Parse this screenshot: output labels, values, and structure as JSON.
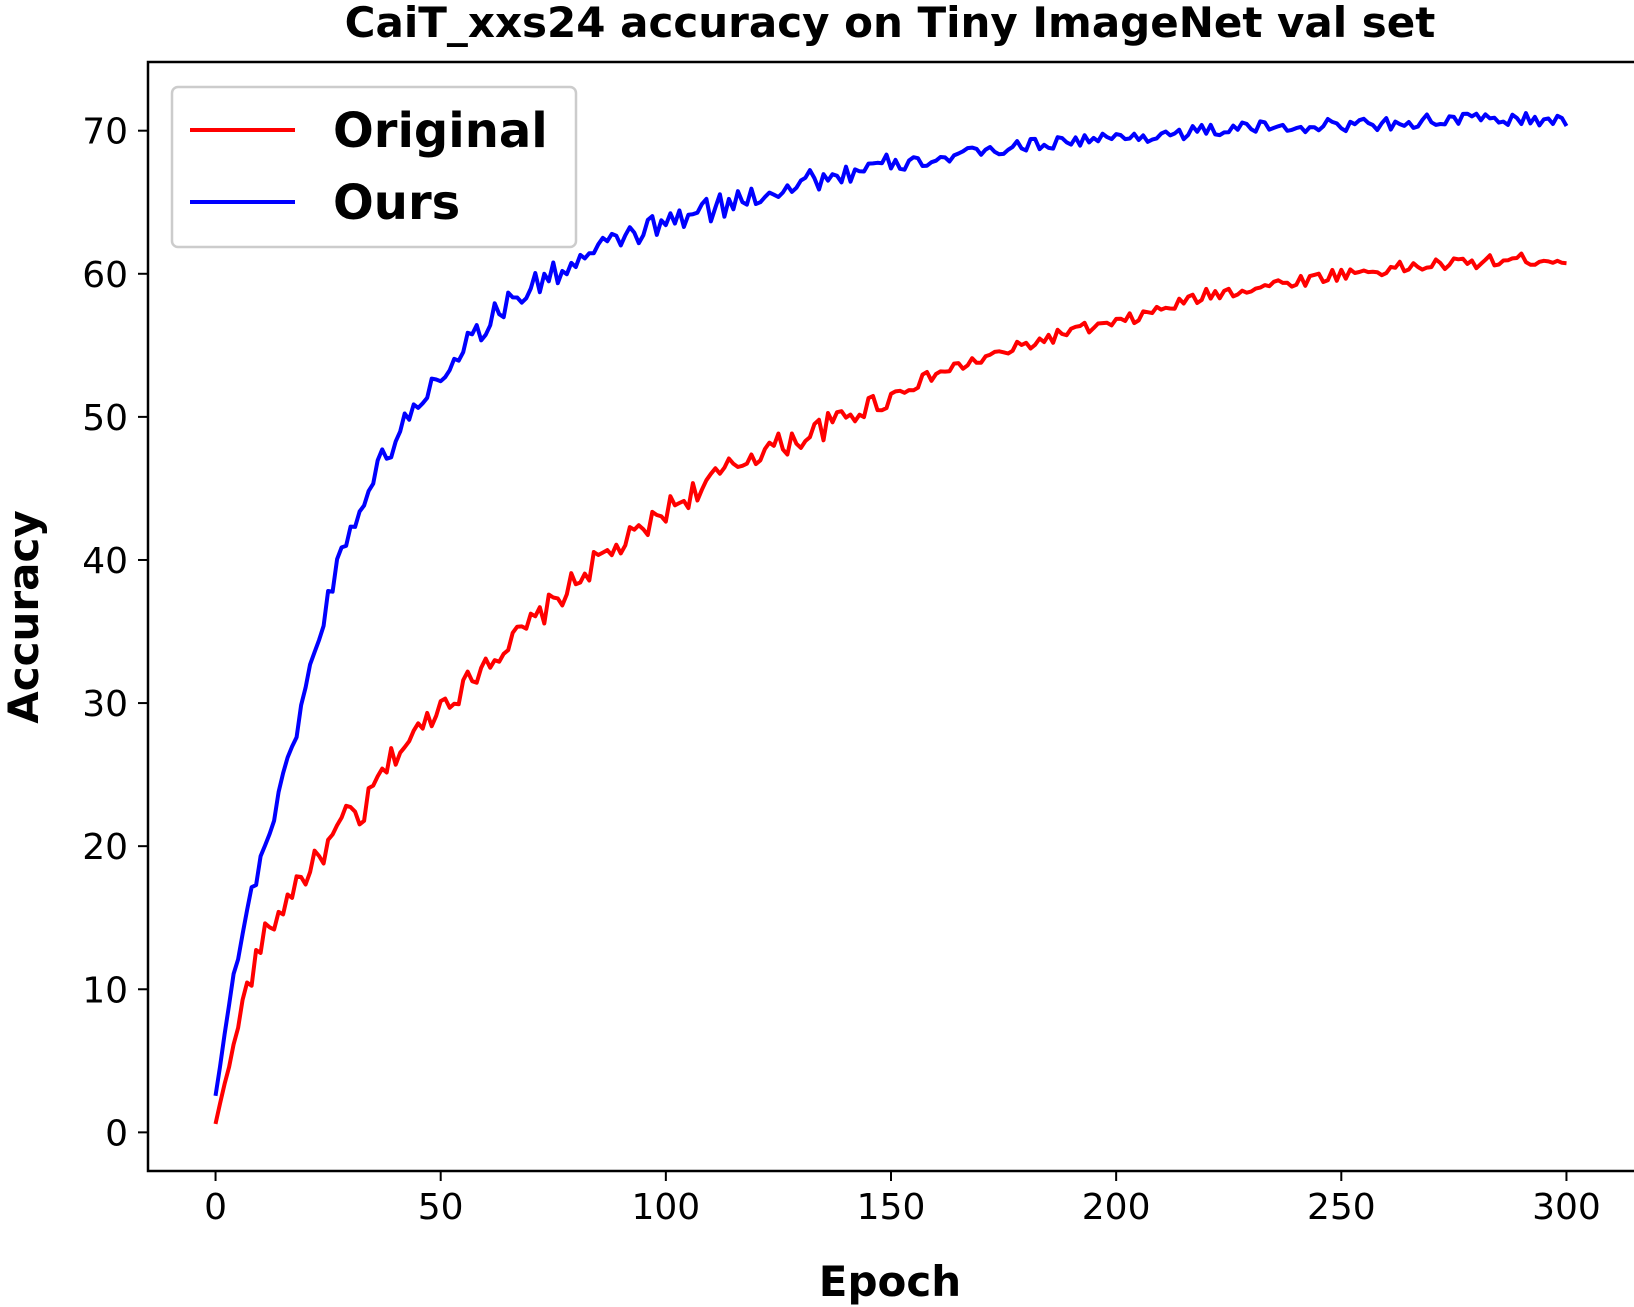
{
  "chart_data": {
    "type": "line",
    "title": "CaiT_xxs24 accuracy on Tiny ImageNet val set",
    "xlabel": "Epoch",
    "ylabel": "Accuracy",
    "xlim": [
      -15,
      315
    ],
    "ylim": [
      -2.7,
      74.8
    ],
    "x_ticks": [
      "0",
      "50",
      "100",
      "150",
      "200",
      "250",
      "300"
    ],
    "y_ticks": [
      "0",
      "10",
      "20",
      "30",
      "40",
      "50",
      "60",
      "70"
    ],
    "legend": {
      "position": "top-left"
    },
    "grid": false,
    "series": [
      {
        "name": "Original",
        "color": "#ff0000",
        "x": [
          0,
          2,
          4,
          6,
          8,
          10,
          12,
          14,
          16,
          18,
          20,
          25,
          30,
          32,
          35,
          40,
          45,
          50,
          55,
          60,
          65,
          70,
          75,
          80,
          85,
          90,
          95,
          100,
          110,
          120,
          130,
          140,
          150,
          160,
          170,
          180,
          190,
          200,
          210,
          220,
          230,
          240,
          250,
          260,
          270,
          280,
          290,
          300
        ],
        "y": [
          0.5,
          3.5,
          6,
          9,
          11,
          13,
          14.5,
          15,
          16.5,
          17.5,
          18,
          20,
          22.5,
          21.5,
          24,
          26.5,
          28,
          30,
          31,
          33,
          34,
          35.5,
          37,
          38.5,
          40,
          41,
          42,
          43.5,
          45.5,
          47.5,
          48.5,
          50,
          51.5,
          53,
          54,
          55,
          56,
          56.5,
          57.5,
          58.5,
          59,
          59.5,
          60,
          60.3,
          60.6,
          60.8,
          61,
          61
        ]
      },
      {
        "name": "Ours",
        "color": "#0000ff",
        "x": [
          0,
          2,
          4,
          6,
          8,
          10,
          12,
          14,
          16,
          18,
          20,
          22,
          24,
          26,
          28,
          30,
          33,
          36,
          40,
          45,
          50,
          55,
          60,
          65,
          70,
          75,
          80,
          85,
          90,
          95,
          100,
          110,
          120,
          130,
          140,
          150,
          160,
          170,
          180,
          190,
          200,
          210,
          220,
          230,
          240,
          250,
          260,
          270,
          280,
          290,
          300
        ],
        "y": [
          2.5,
          7,
          11,
          14,
          16.5,
          19.5,
          21,
          23.5,
          25.5,
          28.5,
          31,
          33.5,
          36,
          38.5,
          40.5,
          42.5,
          44,
          46.5,
          48.5,
          51,
          53,
          55,
          56.5,
          58,
          59,
          60,
          60.8,
          61.5,
          62.5,
          63,
          63.5,
          64.5,
          65.5,
          66.5,
          67,
          67.5,
          68,
          68.5,
          69,
          69.3,
          69.5,
          69.7,
          70,
          70.2,
          70.3,
          70.4,
          70.5,
          70.7,
          70.8,
          70.8,
          70.6
        ]
      }
    ]
  }
}
